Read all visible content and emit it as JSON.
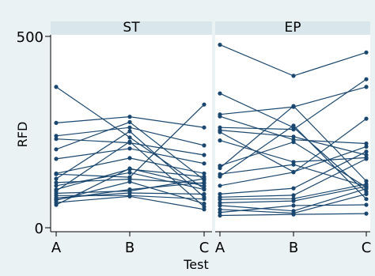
{
  "chart_data": {
    "type": "line",
    "x_title": "Test",
    "y_title": "RFD",
    "categories": [
      "A",
      "B",
      "C"
    ],
    "y_ticks": [
      0,
      500
    ],
    "ylim": [
      0,
      500
    ],
    "line_color": "#1a476f",
    "panel_bg": "#ffffff",
    "strip_bg": "#d9e6eb",
    "outer_bg": "#eaf2f3",
    "panels": [
      {
        "title": "ST",
        "lines": [
          [
            368,
            236,
            102
          ],
          [
            274,
            290,
            262
          ],
          [
            240,
            262,
            215
          ],
          [
            232,
            222,
            190
          ],
          [
            205,
            276,
            125
          ],
          [
            180,
            207,
            168
          ],
          [
            142,
            182,
            142
          ],
          [
            140,
            132,
            322
          ],
          [
            128,
            252,
            80
          ],
          [
            118,
            127,
            116
          ],
          [
            110,
            144,
            100
          ],
          [
            100,
            153,
            133
          ],
          [
            96,
            225,
            55
          ],
          [
            90,
            96,
            128
          ],
          [
            84,
            84,
            75
          ],
          [
            78,
            91,
            88
          ],
          [
            72,
            120,
            63
          ],
          [
            66,
            82,
            48
          ],
          [
            74,
            100,
            118
          ],
          [
            60,
            155,
            109
          ]
        ]
      },
      {
        "title": "EP",
        "lines": [
          [
            478,
            397,
            458
          ],
          [
            351,
            262,
            94
          ],
          [
            296,
            316,
            368
          ],
          [
            291,
            230,
            220
          ],
          [
            262,
            257,
            388
          ],
          [
            255,
            238,
            190
          ],
          [
            250,
            146,
            212
          ],
          [
            228,
            172,
            183
          ],
          [
            162,
            224,
            106
          ],
          [
            156,
            318,
            122
          ],
          [
            140,
            165,
            108
          ],
          [
            134,
            267,
            75
          ],
          [
            110,
            145,
            285
          ],
          [
            88,
            103,
            199
          ],
          [
            80,
            85,
            180
          ],
          [
            74,
            76,
            114
          ],
          [
            65,
            70,
            108
          ],
          [
            58,
            44,
            102
          ],
          [
            48,
            38,
            88
          ],
          [
            40,
            58,
            60
          ],
          [
            32,
            35,
            37
          ]
        ]
      }
    ]
  }
}
